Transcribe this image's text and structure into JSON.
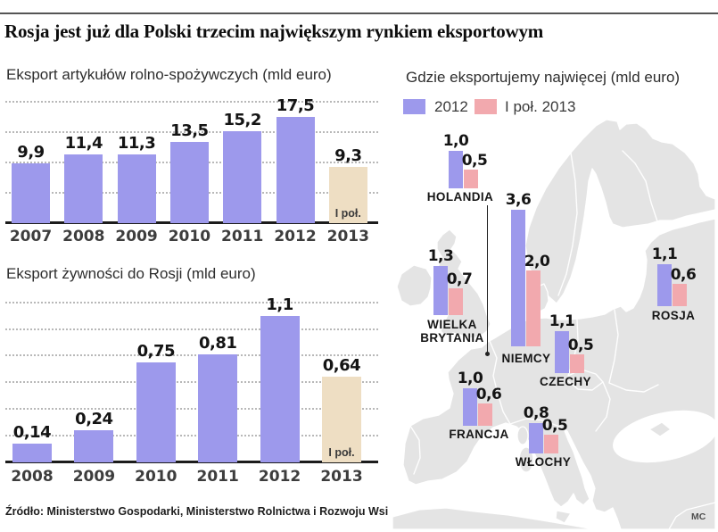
{
  "header": {
    "title": "Rosja jest już dla Polski trzecim największym rynkiem eksportowym"
  },
  "colors": {
    "purple": "#9d99ec",
    "pink": "#f2a9ae",
    "beige": "#eedec3",
    "map_land": "#e4e4e4",
    "grid": "#9b9b9b",
    "axis": "#1c1c1c",
    "text_dark": "#141414",
    "text_gray": "#3d3d3d"
  },
  "chart_data": [
    {
      "type": "bar",
      "title": "Eksport artykułów rolno-spożywczych (mld euro)",
      "categories": [
        "2007",
        "2008",
        "2009",
        "2010",
        "2011",
        "2012",
        "2013"
      ],
      "values": [
        9.9,
        11.4,
        11.3,
        13.5,
        15.2,
        17.5,
        9.3
      ],
      "value_labels": [
        "9,9",
        "11,4",
        "11,3",
        "13,5",
        "15,2",
        "17,5",
        "9,3"
      ],
      "last_bar_note": "I poł.",
      "ylim": [
        0,
        20.6
      ],
      "gridlines": [
        5,
        10,
        15,
        20
      ],
      "grid_style": "dotted",
      "legend_position": "none"
    },
    {
      "type": "bar",
      "title": "Eksport żywności do Rosji (mld euro)",
      "categories": [
        "2008",
        "2009",
        "2010",
        "2011",
        "2012",
        "2013"
      ],
      "values": [
        0.14,
        0.24,
        0.75,
        0.81,
        1.1,
        0.64
      ],
      "value_labels": [
        "0,14",
        "0,24",
        "0,75",
        "0,81",
        "1,1",
        "0,64"
      ],
      "last_bar_note": "I poł.",
      "ylim": [
        0,
        1.24
      ],
      "gridlines": [
        0.2,
        0.4,
        0.6,
        0.8,
        1.0,
        1.2
      ],
      "grid_style": "dotted",
      "legend_position": "none"
    },
    {
      "type": "bar-map",
      "title": "Gdzie eksportujemy najwięcej (mld euro)",
      "legend": [
        {
          "label": "2012",
          "color_key": "purple"
        },
        {
          "label": "I poł. 2013",
          "color_key": "pink"
        }
      ],
      "countries": [
        {
          "name": "HOLANDIA",
          "lines": [
            "HOLANDIA"
          ],
          "v2012": 1.0,
          "v2013": 0.5,
          "labels": [
            "1,0",
            "0,5"
          ]
        },
        {
          "name": "NIEMCY",
          "lines": [
            "NIEMCY"
          ],
          "v2012": 3.6,
          "v2013": 2.0,
          "labels": [
            "3,6",
            "2,0"
          ]
        },
        {
          "name": "WIELKA BRYTANIA",
          "lines": [
            "WIELKA",
            "BRYTANIA"
          ],
          "v2012": 1.3,
          "v2013": 0.7,
          "labels": [
            "1,3",
            "0,7"
          ]
        },
        {
          "name": "CZECHY",
          "lines": [
            "CZECHY"
          ],
          "v2012": 1.1,
          "v2013": 0.5,
          "labels": [
            "1,1",
            "0,5"
          ]
        },
        {
          "name": "ROSJA",
          "lines": [
            "ROSJA"
          ],
          "v2012": 1.1,
          "v2013": 0.6,
          "labels": [
            "1,1",
            "0,6"
          ]
        },
        {
          "name": "FRANCJA",
          "lines": [
            "FRANCJA"
          ],
          "v2012": 1.0,
          "v2013": 0.6,
          "labels": [
            "1,0",
            "0,6"
          ]
        },
        {
          "name": "WŁOCHY",
          "lines": [
            "WŁOCHY"
          ],
          "v2012": 0.8,
          "v2013": 0.5,
          "labels": [
            "0,8",
            "0,5"
          ]
        }
      ]
    }
  ],
  "source": {
    "text": "Źródło: Ministerstwo Gospodarki, Ministerstwo Rolnictwa i Rozwoju Wsi"
  },
  "credit": {
    "text": "MC"
  }
}
